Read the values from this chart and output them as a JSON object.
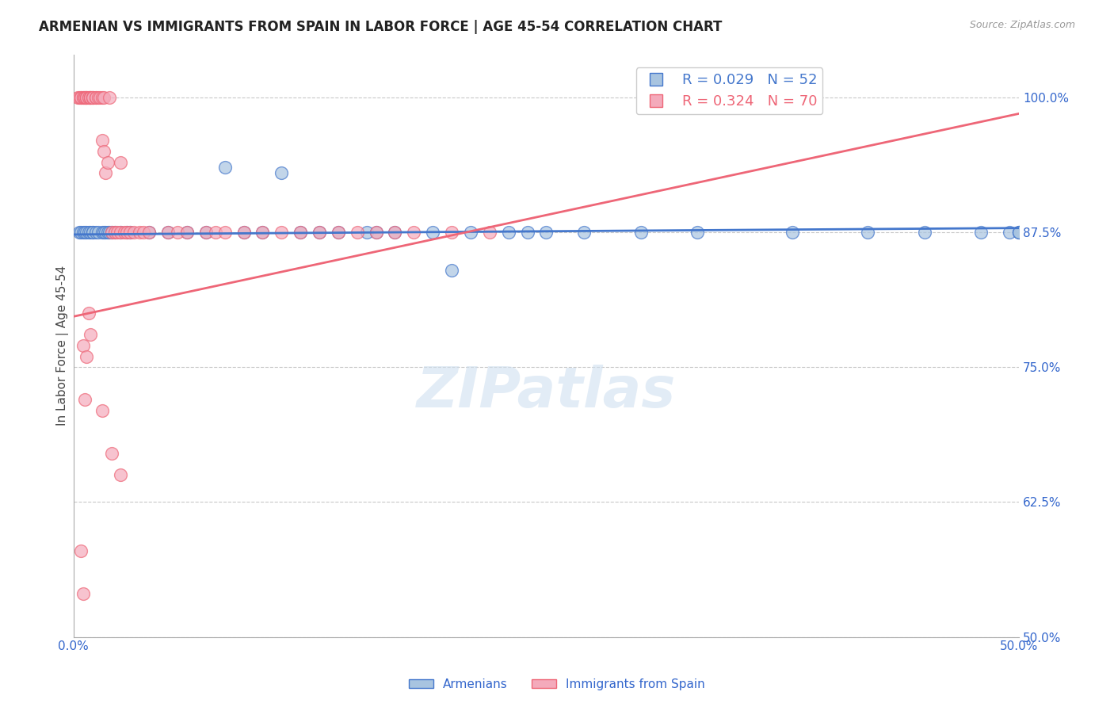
{
  "title": "ARMENIAN VS IMMIGRANTS FROM SPAIN IN LABOR FORCE | AGE 45-54 CORRELATION CHART",
  "source": "Source: ZipAtlas.com",
  "ylabel": "In Labor Force | Age 45-54",
  "xlim": [
    0.0,
    0.5
  ],
  "ylim": [
    0.5,
    1.04
  ],
  "xticks": [
    0.0,
    0.05,
    0.1,
    0.15,
    0.2,
    0.25,
    0.3,
    0.35,
    0.4,
    0.45,
    0.5
  ],
  "xtick_labels": [
    "0.0%",
    "",
    "",
    "",
    "",
    "",
    "",
    "",
    "",
    "",
    "50.0%"
  ],
  "yticks": [
    0.5,
    0.625,
    0.75,
    0.875,
    1.0
  ],
  "ytick_labels": [
    "50.0%",
    "62.5%",
    "75.0%",
    "87.5%",
    "100.0%"
  ],
  "legend_blue_label": "R = 0.029   N = 52",
  "legend_pink_label": "R = 0.324   N = 70",
  "legend_armenians": "Armenians",
  "legend_spain": "Immigrants from Spain",
  "blue_color": "#A8C4E0",
  "pink_color": "#F4AABB",
  "trend_blue_color": "#4477CC",
  "trend_pink_color": "#EE6677",
  "watermark": "ZIPatlas",
  "title_fontsize": 12,
  "axis_label_fontsize": 11,
  "tick_fontsize": 11,
  "blue_x": [
    0.003,
    0.004,
    0.005,
    0.006,
    0.007,
    0.008,
    0.009,
    0.01,
    0.01,
    0.012,
    0.013,
    0.015,
    0.016,
    0.017,
    0.018,
    0.019,
    0.02,
    0.022,
    0.025,
    0.028,
    0.03,
    0.04,
    0.05,
    0.06,
    0.07,
    0.09,
    0.1,
    0.12,
    0.14,
    0.155,
    0.17,
    0.19,
    0.21,
    0.23,
    0.25,
    0.27,
    0.3,
    0.33,
    0.38,
    0.42,
    0.45,
    0.48,
    0.495,
    0.5,
    0.5,
    0.5,
    0.08,
    0.11,
    0.13,
    0.16,
    0.2,
    0.24
  ],
  "blue_y": [
    0.875,
    0.875,
    0.875,
    0.875,
    0.875,
    0.875,
    0.875,
    0.875,
    0.875,
    0.875,
    0.875,
    0.875,
    0.875,
    0.875,
    0.875,
    0.875,
    0.875,
    0.875,
    0.875,
    0.875,
    0.875,
    0.875,
    0.875,
    0.875,
    0.875,
    0.875,
    0.875,
    0.875,
    0.875,
    0.875,
    0.875,
    0.875,
    0.875,
    0.875,
    0.875,
    0.875,
    0.875,
    0.875,
    0.875,
    0.875,
    0.875,
    0.875,
    0.875,
    0.875,
    0.875,
    0.875,
    0.935,
    0.93,
    0.875,
    0.875,
    0.84,
    0.875
  ],
  "pink_x": [
    0.002,
    0.003,
    0.004,
    0.004,
    0.005,
    0.005,
    0.006,
    0.006,
    0.007,
    0.007,
    0.007,
    0.008,
    0.008,
    0.009,
    0.009,
    0.009,
    0.01,
    0.01,
    0.01,
    0.012,
    0.012,
    0.013,
    0.014,
    0.015,
    0.015,
    0.016,
    0.016,
    0.017,
    0.018,
    0.019,
    0.02,
    0.022,
    0.023,
    0.025,
    0.025,
    0.027,
    0.028,
    0.03,
    0.032,
    0.035,
    0.037,
    0.04,
    0.05,
    0.055,
    0.06,
    0.07,
    0.075,
    0.08,
    0.09,
    0.1,
    0.11,
    0.12,
    0.13,
    0.14,
    0.15,
    0.16,
    0.17,
    0.18,
    0.2,
    0.22,
    0.004,
    0.005,
    0.005,
    0.006,
    0.007,
    0.008,
    0.009,
    0.015,
    0.02,
    0.025
  ],
  "pink_y": [
    1.0,
    1.0,
    1.0,
    1.0,
    1.0,
    1.0,
    1.0,
    1.0,
    1.0,
    1.0,
    1.0,
    1.0,
    1.0,
    1.0,
    1.0,
    1.0,
    1.0,
    1.0,
    1.0,
    1.0,
    1.0,
    1.0,
    1.0,
    1.0,
    0.96,
    0.95,
    1.0,
    0.93,
    0.94,
    1.0,
    0.875,
    0.875,
    0.875,
    0.94,
    0.875,
    0.875,
    0.875,
    0.875,
    0.875,
    0.875,
    0.875,
    0.875,
    0.875,
    0.875,
    0.875,
    0.875,
    0.875,
    0.875,
    0.875,
    0.875,
    0.875,
    0.875,
    0.875,
    0.875,
    0.875,
    0.875,
    0.875,
    0.875,
    0.875,
    0.875,
    0.58,
    0.54,
    0.77,
    0.72,
    0.76,
    0.8,
    0.78,
    0.71,
    0.67,
    0.65
  ],
  "pink_trend_x": [
    0.0,
    0.5
  ],
  "pink_trend_y": [
    0.797,
    0.985
  ],
  "blue_trend_x": [
    0.0,
    0.5
  ],
  "blue_trend_y": [
    0.873,
    0.879
  ]
}
